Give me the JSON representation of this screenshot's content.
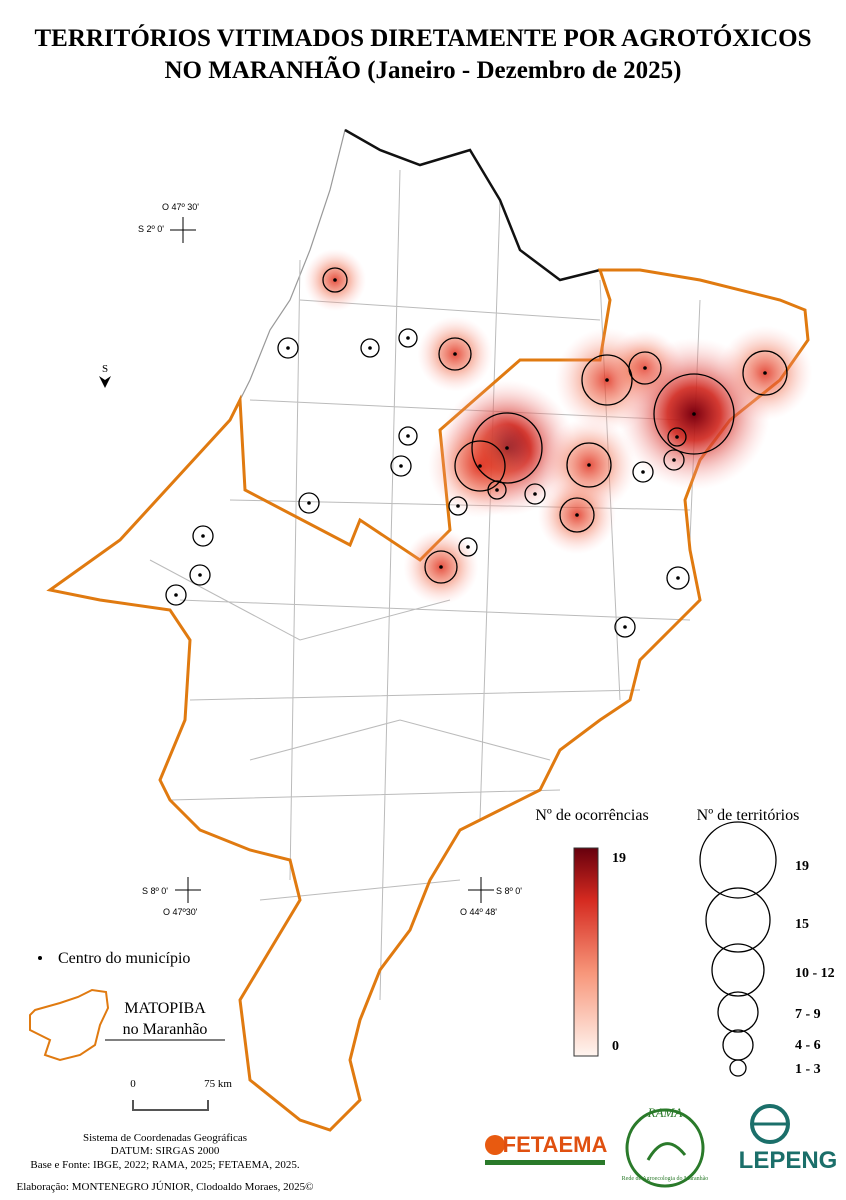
{
  "title": [
    "TERRITÓRIOS VITIMADOS DIRETAMENTE POR AGROTÓXICOS",
    "NO MARANHÃO (Janeiro - Dezembro de 2025)"
  ],
  "coordinates": [
    {
      "lon": "O 47º 30'",
      "lat": "S 2º 0'"
    },
    {
      "lat": "S 8º 0'",
      "lon": "O 47º30'"
    },
    {
      "lat": "S 8º 0'",
      "lon": "O 44º 48'"
    }
  ],
  "north_arrow": "S",
  "legend": {
    "occurrences": {
      "title": "Nº de ocorrências",
      "max": "19",
      "min": "0"
    },
    "territories": {
      "title": "Nº de territórios",
      "classes": [
        "19",
        "15",
        "10 - 12",
        "7 - 9",
        "4 - 6",
        "1 - 3"
      ]
    },
    "centro": "Centro do município",
    "matopiba": [
      "MATOPIBA",
      "no Maranhão"
    ]
  },
  "scale_bar": {
    "start": "0",
    "end": "75 km"
  },
  "source": [
    "Sistema de Coordenadas Geográficas",
    "DATUM: SIRGAS 2000",
    "Base e Fonte: IBGE, 2022; RAMA, 2025; FETAEMA, 2025.",
    "Elaboração: MONTENEGRO JÚNIOR, Clodoaldo Moraes, 2025©"
  ],
  "logos": [
    "FETAEMA",
    "RAMA",
    "Rede de Agroecologia do Maranhão",
    "LEPENG"
  ]
}
